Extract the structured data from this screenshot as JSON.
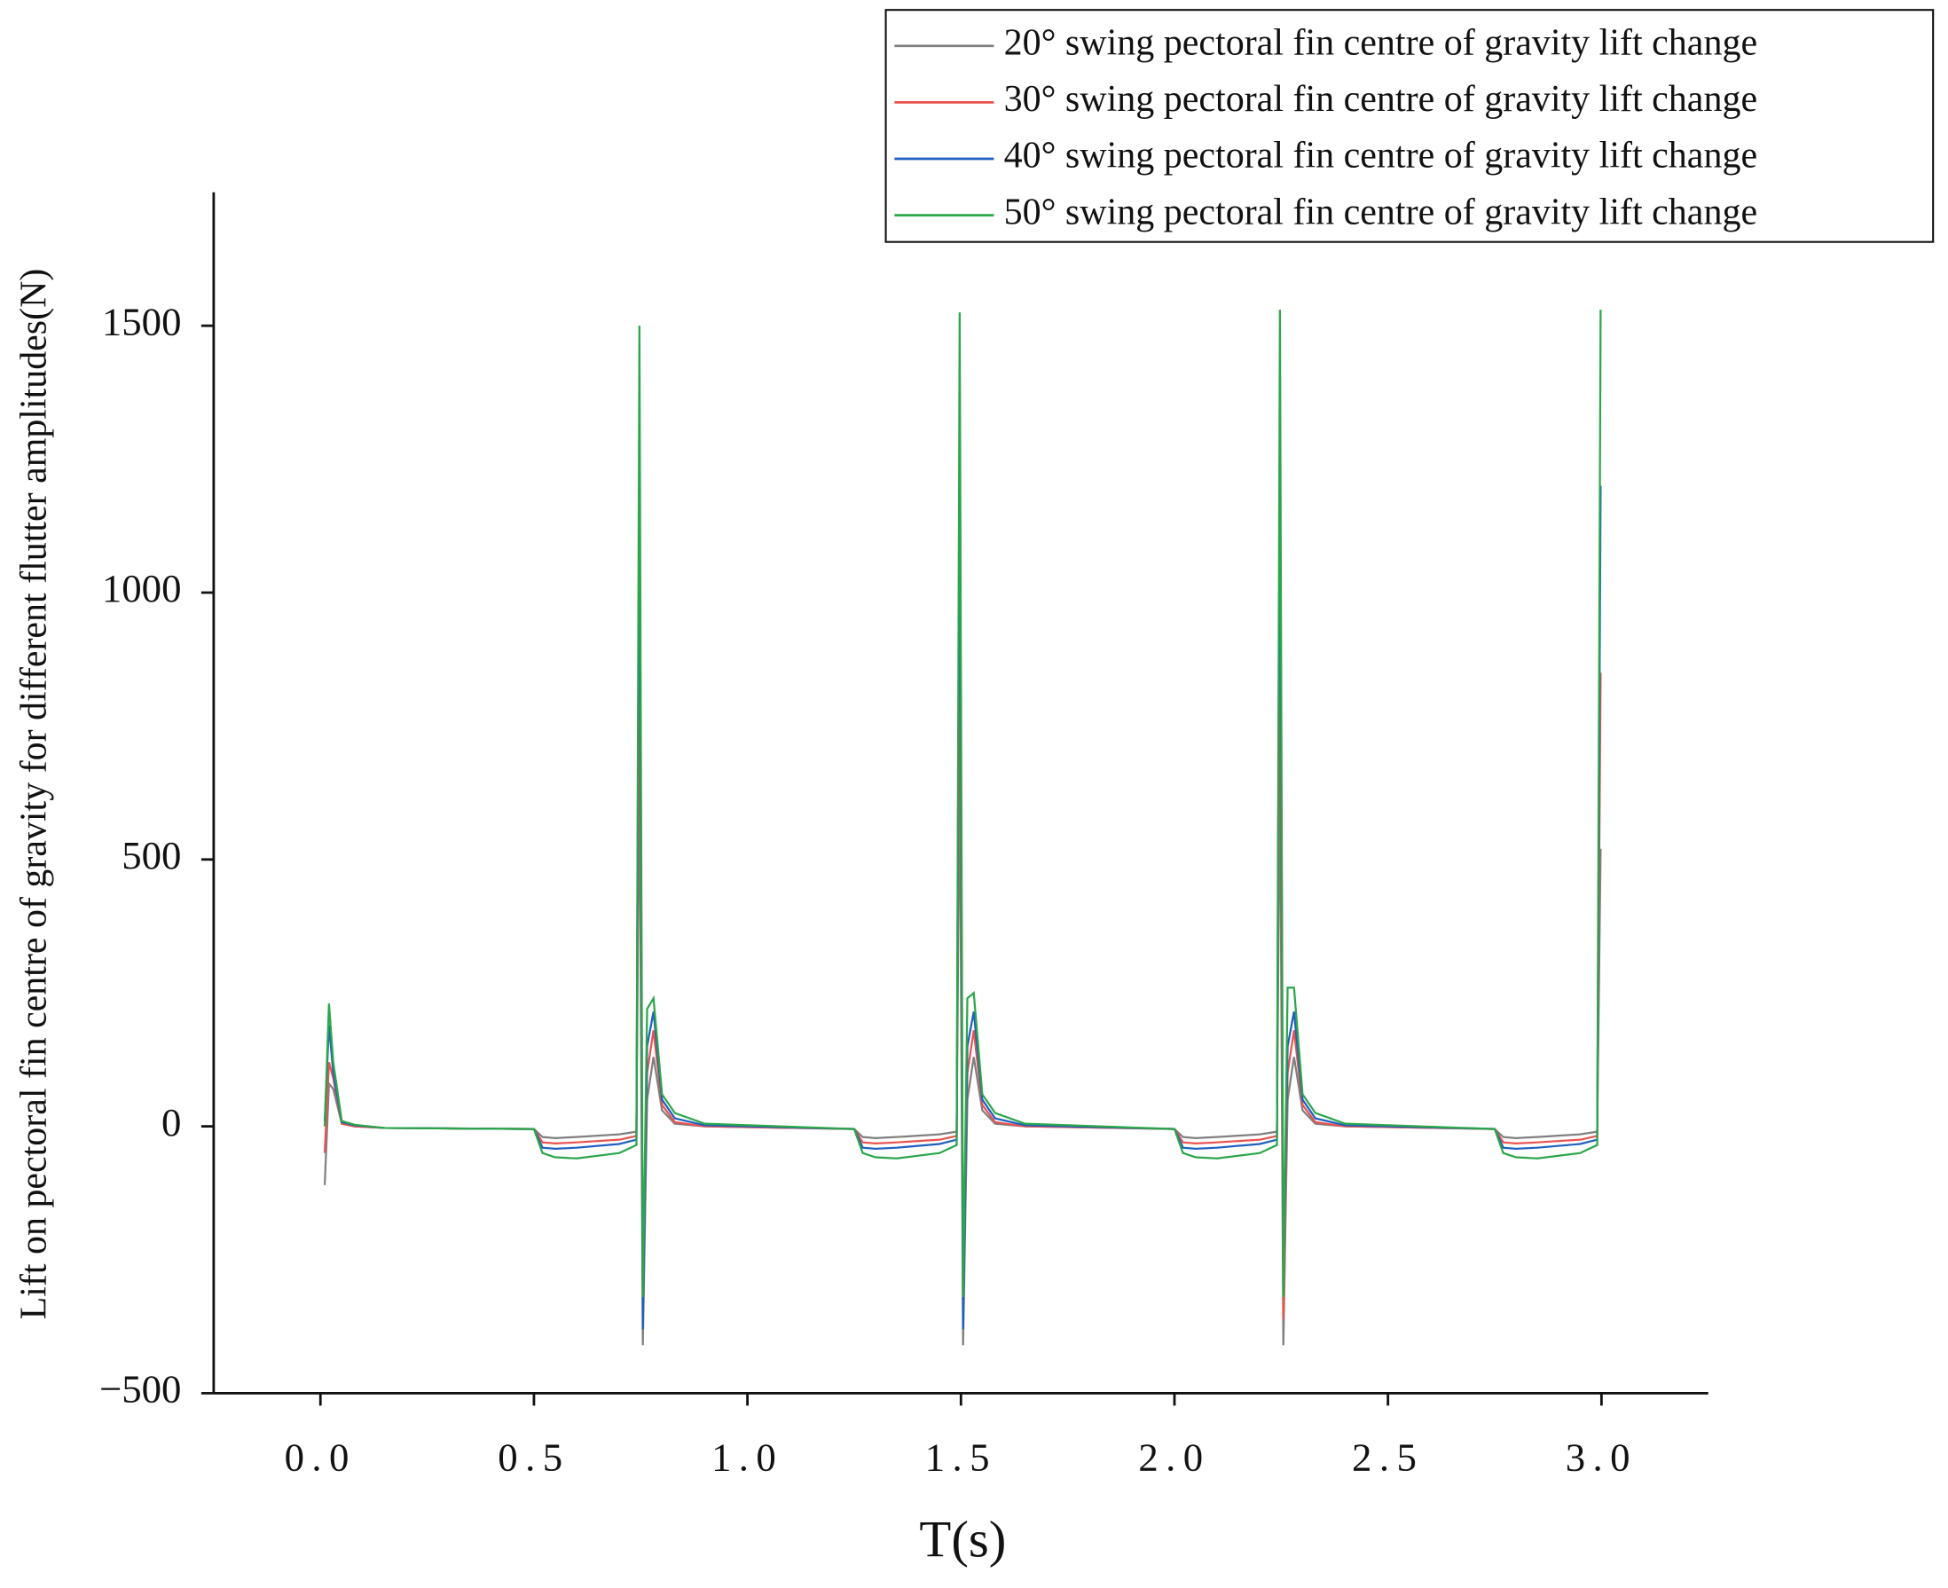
{
  "chart_data": {
    "type": "line",
    "xlabel": "T(s)",
    "ylabel": "Lift on pectoral fin centre of gravity for different flutter amplitudes(N)",
    "x": [
      0.01,
      0.02,
      0.03,
      0.05,
      0.08,
      0.15,
      0.5,
      0.52,
      0.55,
      0.6,
      0.7,
      0.74,
      0.747,
      0.755,
      0.765,
      0.78,
      0.8,
      0.83,
      0.9,
      1.25,
      1.27,
      1.3,
      1.35,
      1.45,
      1.49,
      1.497,
      1.505,
      1.515,
      1.53,
      1.55,
      1.58,
      1.65,
      2.0,
      2.02,
      2.05,
      2.1,
      2.2,
      2.24,
      2.247,
      2.255,
      2.265,
      2.28,
      2.3,
      2.33,
      2.4,
      2.75,
      2.77,
      2.8,
      2.85,
      2.95,
      2.99,
      2.998
    ],
    "series": [
      {
        "name": "20° swing pectoral fin centre of gravity lift change",
        "color": "#808080",
        "values": [
          -110,
          80,
          70,
          5,
          0,
          -3,
          -5,
          -20,
          -22,
          -20,
          -15,
          -10,
          700,
          -410,
          50,
          130,
          30,
          5,
          0,
          -5,
          -20,
          -22,
          -20,
          -15,
          -10,
          700,
          -410,
          50,
          130,
          30,
          5,
          0,
          -5,
          -20,
          -22,
          -20,
          -15,
          -10,
          700,
          -410,
          50,
          130,
          30,
          5,
          0,
          -5,
          -20,
          -22,
          -20,
          -15,
          -10,
          520
        ]
      },
      {
        "name": "30° swing pectoral fin centre of gravity lift change",
        "color": "#e8534f",
        "values": [
          -50,
          120,
          90,
          5,
          0,
          -3,
          -5,
          -30,
          -32,
          -30,
          -25,
          -18,
          1000,
          -350,
          100,
          180,
          40,
          8,
          0,
          -5,
          -30,
          -32,
          -30,
          -25,
          -18,
          1000,
          -330,
          100,
          180,
          40,
          8,
          0,
          -5,
          -30,
          -32,
          -30,
          -25,
          -18,
          1000,
          -360,
          100,
          180,
          40,
          8,
          0,
          -5,
          -30,
          -32,
          -30,
          -25,
          -18,
          850
        ]
      },
      {
        "name": "40° swing pectoral fin centre of gravity lift change",
        "color": "#1f5fc0",
        "values": [
          10,
          190,
          100,
          8,
          2,
          -3,
          -5,
          -40,
          -42,
          -40,
          -33,
          -25,
          1300,
          -380,
          150,
          215,
          50,
          15,
          2,
          -5,
          -40,
          -42,
          -40,
          -33,
          -25,
          1300,
          -380,
          150,
          215,
          50,
          15,
          2,
          -5,
          -40,
          -42,
          -40,
          -33,
          -25,
          1300,
          -300,
          150,
          215,
          50,
          15,
          2,
          -5,
          -40,
          -42,
          -40,
          -33,
          -25,
          1200
        ]
      },
      {
        "name": "50° swing pectoral fin centre of gravity lift change",
        "color": "#2ca64a",
        "values": [
          0,
          230,
          120,
          10,
          3,
          -3,
          -5,
          -50,
          -58,
          -60,
          -50,
          -35,
          1500,
          -320,
          220,
          240,
          60,
          25,
          5,
          -5,
          -50,
          -58,
          -60,
          -50,
          -35,
          1525,
          -320,
          240,
          250,
          60,
          25,
          5,
          -5,
          -50,
          -58,
          -60,
          -50,
          -35,
          1530,
          -320,
          260,
          260,
          60,
          25,
          5,
          -5,
          -50,
          -58,
          -60,
          -50,
          -35,
          1530
        ]
      }
    ],
    "xlim": [
      -0.25,
      3.25
    ],
    "xticks": [
      {
        "value": 0,
        "label": "0.0"
      },
      0.5,
      {
        "value": 1,
        "label": "1.0"
      },
      1.5,
      {
        "value": 2,
        "label": "2.0"
      },
      2.5,
      {
        "value": 3,
        "label": "3.0"
      }
    ],
    "ylim": [
      -500,
      1750
    ],
    "yticks": [
      {
        "value": -500,
        "label": "−500"
      },
      0,
      500,
      1000,
      1500
    ],
    "legend": "upper right"
  }
}
